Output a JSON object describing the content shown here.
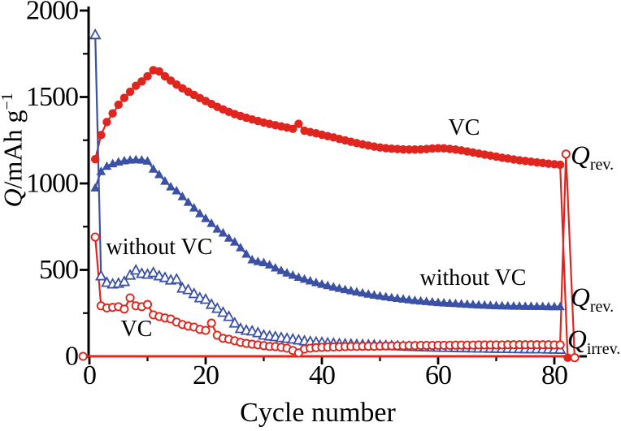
{
  "figure": {
    "x_axis_title": "Cycle number",
    "y_axis_title": {
      "italic_part": "Q",
      "rest_part": "/mAh g",
      "sup_part": "−1"
    },
    "annotations": {
      "vc_top": "VC",
      "without_vc_left": "without VC",
      "vc_bottom": "VC",
      "without_vc_right": "without VC"
    },
    "right_labels": [
      {
        "main": "Q",
        "sub": "rev."
      },
      {
        "main": "Q",
        "sub": "rev."
      },
      {
        "main": "Q",
        "sub": "irrev."
      }
    ],
    "colors": {
      "vc_red": "#e0251e",
      "without_vc_blue": "#3b51a5",
      "axis_black": "#000000"
    }
  },
  "chart_data": {
    "type": "line",
    "title": "",
    "xlabel": "Cycle number",
    "ylabel": "Q/mAh g−1",
    "xlim": [
      0,
      85.6
    ],
    "ylim": [
      0,
      2000
    ],
    "grid": false,
    "legend_position": "in-plot text annotations",
    "x_ticks": {
      "major": [
        0,
        20,
        40,
        60,
        80
      ],
      "minor": [
        10,
        30,
        50,
        70
      ]
    },
    "y_ticks": {
      "major": [
        0,
        500,
        1000,
        1500,
        2000
      ],
      "minor": [
        250,
        750,
        1250,
        1750
      ]
    },
    "x_tick_labels": [
      "0",
      "20",
      "40",
      "60",
      "80"
    ],
    "y_tick_labels": [
      "0",
      "500",
      "1000",
      "1500",
      "2000"
    ],
    "series": [
      {
        "name": "VC reversible capacity (Q_rev.)",
        "marker": "circle-filled",
        "color": "#e0251e",
        "start_cycle": 1,
        "values": [
          1140,
          1280,
          1355,
          1405,
          1455,
          1495,
          1530,
          1565,
          1590,
          1620,
          1655,
          1648,
          1620,
          1595,
          1572,
          1550,
          1530,
          1512,
          1494,
          1477,
          1460,
          1443,
          1428,
          1414,
          1401,
          1390,
          1380,
          1370,
          1361,
          1352,
          1344,
          1337,
          1330,
          1323,
          1316,
          1345,
          1305,
          1297,
          1290,
          1282,
          1274,
          1266,
          1257,
          1249,
          1241,
          1233,
          1226,
          1219,
          1213,
          1208,
          1204,
          1201,
          1199,
          1197,
          1196,
          1196,
          1197,
          1199,
          1202,
          1204,
          1203,
          1200,
          1196,
          1191,
          1185,
          1179,
          1173,
          1167,
          1161,
          1155,
          1149,
          1144,
          1139,
          1134,
          1130,
          1126,
          1122,
          1118,
          1114,
          1111,
          1108
        ],
        "extra": [
          [
            82.3,
            -8
          ]
        ]
      },
      {
        "name": "without VC reversible capacity (Q_rev.)",
        "marker": "triangle-filled",
        "color": "#3b51a5",
        "start_cycle": 1,
        "values": [
          975,
          1070,
          1100,
          1115,
          1125,
          1132,
          1136,
          1138,
          1136,
          1130,
          1084,
          1052,
          1014,
          981,
          958,
          925,
          892,
          859,
          826,
          798,
          770,
          737,
          714,
          685,
          662,
          629,
          592,
          559,
          549,
          543,
          530,
          512,
          497,
          483,
          470,
          458,
          447,
          437,
          427,
          418,
          410,
          402,
          394,
          387,
          380,
          373,
          367,
          361,
          355,
          350,
          345,
          340,
          336,
          332,
          328,
          324,
          321,
          318,
          315,
          312,
          310,
          308,
          306,
          304,
          302,
          300,
          298,
          297,
          295,
          294,
          293,
          292,
          291,
          291,
          290,
          290,
          289,
          289,
          288,
          288,
          288
        ]
      },
      {
        "name": "without VC irreversible capacity (Q_irrev.)",
        "marker": "triangle-open",
        "color": "#3b51a5",
        "start_cycle": 1,
        "values": [
          1860,
          465,
          427,
          418,
          422,
          432,
          469,
          498,
          479,
          474,
          484,
          465,
          455,
          441,
          446,
          394,
          385,
          362,
          338,
          329,
          300,
          277,
          254,
          230,
          192,
          160,
          150,
          146,
          136,
          122,
          117,
          113,
          108,
          103,
          99,
          94,
          89,
          85,
          82,
          80,
          77,
          75,
          73,
          71,
          70,
          68,
          67,
          66,
          65,
          63,
          62,
          61,
          60,
          58,
          57,
          56,
          55,
          54,
          53,
          52,
          51,
          51,
          50,
          49,
          49,
          48,
          47,
          47,
          46,
          46,
          45,
          45,
          44,
          44,
          43,
          43,
          42,
          42,
          41,
          41,
          40
        ]
      },
      {
        "name": "VC irreversible capacity (Q_irrev.)",
        "marker": "circle-open",
        "color": "#e0251e",
        "start_cycle": 1,
        "values": [
          690,
          292,
          280,
          283,
          287,
          273,
          338,
          292,
          287,
          300,
          240,
          230,
          222,
          216,
          198,
          184,
          175,
          169,
          156,
          150,
          192,
          122,
          104,
          99,
          90,
          81,
          75,
          70,
          66,
          62,
          57,
          56,
          52,
          47,
          34,
          20,
          42,
          47,
          50,
          52,
          53,
          54,
          55,
          56,
          57,
          57,
          58,
          58,
          58,
          59,
          60,
          60,
          61,
          61,
          62,
          62,
          63,
          63,
          63,
          64,
          64,
          64,
          65,
          65,
          65,
          65,
          66,
          66,
          66,
          66,
          66,
          67,
          67,
          67,
          67,
          67,
          67,
          67,
          67,
          66,
          66
        ],
        "extra": [
          [
            82,
            1170
          ],
          [
            83.5,
            -8
          ]
        ]
      },
      {
        "name": "zero baseline (red)",
        "marker": "circle-open",
        "color": "#e0251e",
        "points": [
          [
            -1.1,
            0
          ],
          [
            84.4,
            0
          ]
        ],
        "marker_at": [
          [
            -1.1,
            0
          ]
        ]
      }
    ]
  }
}
